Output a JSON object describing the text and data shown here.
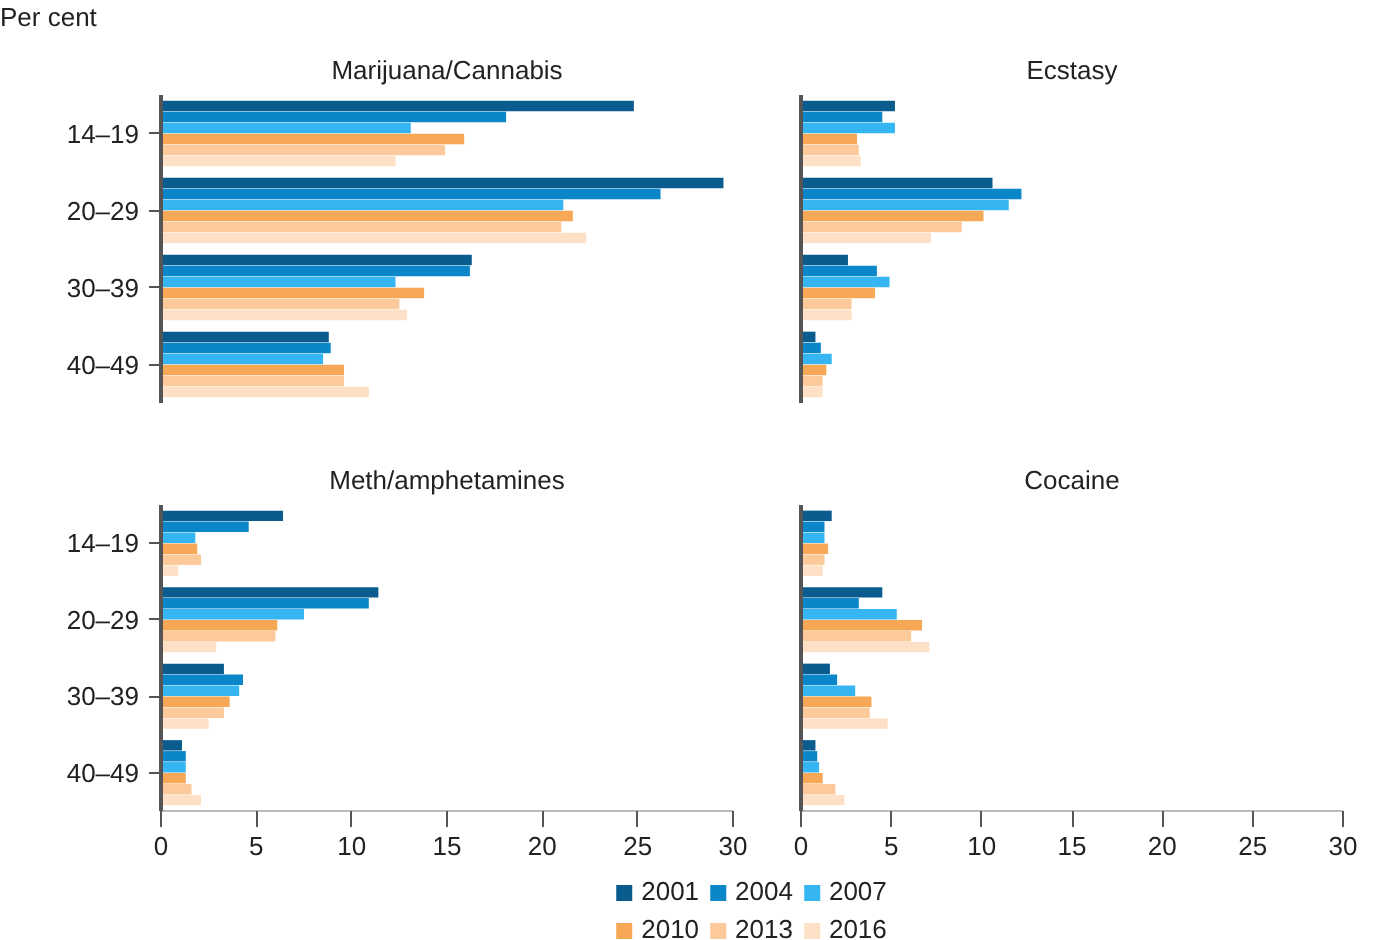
{
  "chart_data": [
    {
      "type": "bar",
      "orientation": "horizontal",
      "title": "Marijuana/Cannabis",
      "annotations": [
        "Per cent"
      ],
      "categories": [
        "14–19",
        "20–29",
        "30–39",
        "40–49"
      ],
      "xlim": [
        0,
        30
      ],
      "xticks": [
        0,
        5,
        10,
        15,
        20,
        25,
        30
      ],
      "tick_labels": "y",
      "series": [
        {
          "color": "#0b5c8e",
          "values": [
            24.8,
            29.5,
            16.3,
            8.8
          ]
        },
        {
          "color": "#0b86c9",
          "values": [
            18.1,
            26.2,
            16.2,
            8.9
          ]
        },
        {
          "color": "#35b6f2",
          "values": [
            13.1,
            21.1,
            12.3,
            8.5
          ]
        },
        {
          "color": "#f7a856",
          "values": [
            15.9,
            21.6,
            13.8,
            9.6
          ]
        },
        {
          "color": "#fbc99a",
          "values": [
            14.9,
            21.0,
            12.5,
            9.6
          ]
        },
        {
          "color": "#fde0c5",
          "values": [
            12.3,
            22.3,
            12.9,
            10.9
          ]
        }
      ]
    },
    {
      "type": "bar",
      "orientation": "horizontal",
      "title": "Ecstasy",
      "categories": [
        null,
        null,
        null,
        null
      ],
      "xlim": [
        0,
        30
      ],
      "xticks": [
        0,
        5,
        10,
        15,
        20,
        25,
        30
      ],
      "tick_labels": false,
      "series": [
        {
          "color": "#0b5c8e",
          "values": [
            5.2,
            10.6,
            2.6,
            0.8
          ]
        },
        {
          "color": "#0b86c9",
          "values": [
            4.5,
            12.2,
            4.2,
            1.1
          ]
        },
        {
          "color": "#35b6f2",
          "values": [
            5.2,
            11.5,
            4.9,
            1.7
          ]
        },
        {
          "color": "#f7a856",
          "values": [
            3.1,
            10.1,
            4.1,
            1.4
          ]
        },
        {
          "color": "#fbc99a",
          "values": [
            3.2,
            8.9,
            2.8,
            1.2
          ]
        },
        {
          "color": "#fde0c5",
          "values": [
            3.3,
            7.2,
            2.8,
            1.2
          ]
        }
      ]
    },
    {
      "type": "bar",
      "orientation": "horizontal",
      "title": "Meth/amphetamines",
      "categories": [
        "14–19",
        "20–29",
        "30–39",
        "40–49"
      ],
      "xlim": [
        0,
        30
      ],
      "xticks": [
        0,
        5,
        10,
        15,
        20,
        25,
        30
      ],
      "series": [
        {
          "color": "#0b5c8e",
          "values": [
            6.4,
            11.4,
            3.3,
            1.1
          ]
        },
        {
          "color": "#0b86c9",
          "values": [
            4.6,
            10.9,
            4.3,
            1.3
          ]
        },
        {
          "color": "#35b6f2",
          "values": [
            1.8,
            7.5,
            4.1,
            1.3
          ]
        },
        {
          "color": "#f7a856",
          "values": [
            1.9,
            6.1,
            3.6,
            1.3
          ]
        },
        {
          "color": "#fbc99a",
          "values": [
            2.1,
            6.0,
            3.3,
            1.6
          ]
        },
        {
          "color": "#fde0c5",
          "values": [
            0.9,
            2.9,
            2.5,
            2.1
          ]
        }
      ]
    },
    {
      "type": "bar",
      "orientation": "horizontal",
      "title": "Cocaine",
      "categories": [
        null,
        null,
        null,
        null
      ],
      "xlim": [
        0,
        30
      ],
      "xticks": [
        0,
        5,
        10,
        15,
        20,
        25,
        30
      ],
      "tick_labels": "x",
      "legend": "bottom",
      "series": [
        {
          "name": "2001",
          "color": "#0b5c8e",
          "values": [
            1.7,
            4.5,
            1.6,
            0.8
          ]
        },
        {
          "name": "2004",
          "color": "#0b86c9",
          "values": [
            1.3,
            3.2,
            2.0,
            0.9
          ]
        },
        {
          "name": "2007",
          "color": "#35b6f2",
          "values": [
            1.3,
            5.3,
            3.0,
            1.0
          ]
        },
        {
          "name": "2010",
          "color": "#f7a856",
          "values": [
            1.5,
            6.7,
            3.9,
            1.2
          ]
        },
        {
          "name": "2013",
          "color": "#fbc99a",
          "values": [
            1.3,
            6.1,
            3.8,
            1.9
          ]
        },
        {
          "name": "2016",
          "color": "#fde0c5",
          "values": [
            1.2,
            7.1,
            4.8,
            2.4
          ]
        }
      ]
    }
  ]
}
